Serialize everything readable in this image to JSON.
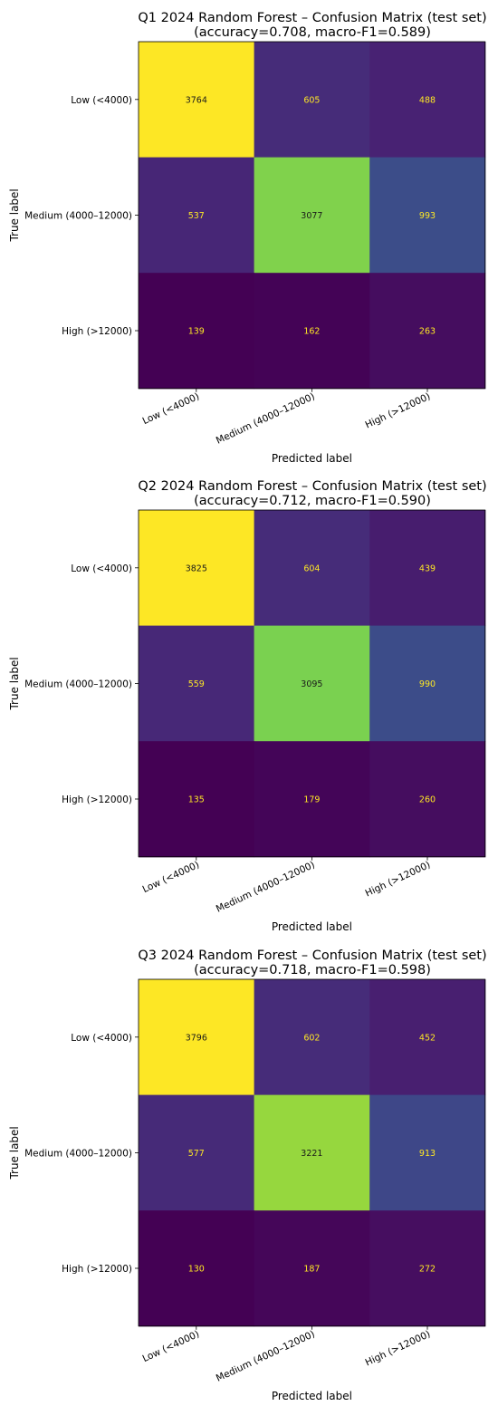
{
  "chart_data": [
    {
      "type": "heatmap",
      "title": "Q1 2024 Random Forest – Confusion Matrix (test set)",
      "subtitle": "(accuracy=0.708, macro-F1=0.589)",
      "xlabel": "Predicted label",
      "ylabel": "True label",
      "x_categories": [
        "Low (<4000)",
        "Medium (4000–12000)",
        "High (>12000)"
      ],
      "y_categories": [
        "Low (<4000)",
        "Medium (4000–12000)",
        "High (>12000)"
      ],
      "values": [
        [
          3764,
          605,
          488
        ],
        [
          537,
          3077,
          993
        ],
        [
          139,
          162,
          263
        ]
      ],
      "colormap": "viridis"
    },
    {
      "type": "heatmap",
      "title": "Q2 2024 Random Forest – Confusion Matrix (test set)",
      "subtitle": "(accuracy=0.712, macro-F1=0.590)",
      "xlabel": "Predicted label",
      "ylabel": "True label",
      "x_categories": [
        "Low (<4000)",
        "Medium (4000–12000)",
        "High (>12000)"
      ],
      "y_categories": [
        "Low (<4000)",
        "Medium (4000–12000)",
        "High (>12000)"
      ],
      "values": [
        [
          3825,
          604,
          439
        ],
        [
          559,
          3095,
          990
        ],
        [
          135,
          179,
          260
        ]
      ],
      "colormap": "viridis"
    },
    {
      "type": "heatmap",
      "title": "Q3 2024 Random Forest – Confusion Matrix (test set)",
      "subtitle": "(accuracy=0.718, macro-F1=0.598)",
      "xlabel": "Predicted label",
      "ylabel": "True label",
      "x_categories": [
        "Low (<4000)",
        "Medium (4000–12000)",
        "High (>12000)"
      ],
      "y_categories": [
        "Low (<4000)",
        "Medium (4000–12000)",
        "High (>12000)"
      ],
      "values": [
        [
          3796,
          602,
          452
        ],
        [
          577,
          3221,
          913
        ],
        [
          130,
          187,
          272
        ]
      ],
      "colormap": "viridis"
    }
  ]
}
